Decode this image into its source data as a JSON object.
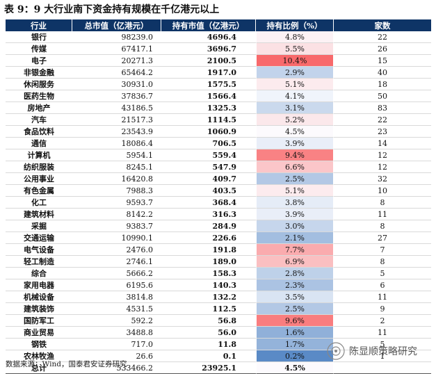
{
  "title": "表 9：9 大行业南下资金持有规模在千亿港元以上",
  "headers": [
    "行业",
    "总市值（亿港元）",
    "持有市值（亿港元）",
    "持有比例（%）",
    "家数"
  ],
  "rows": [
    {
      "industry": "银行",
      "market_value": "98239.0",
      "holding_value": "4696.4",
      "ratio": "4.8%",
      "ratio_num": 4.8,
      "count": "22"
    },
    {
      "industry": "传媒",
      "market_value": "67417.1",
      "holding_value": "3696.7",
      "ratio": "5.5%",
      "ratio_num": 5.5,
      "count": "26"
    },
    {
      "industry": "电子",
      "market_value": "20271.3",
      "holding_value": "2100.5",
      "ratio": "10.4%",
      "ratio_num": 10.4,
      "count": "15"
    },
    {
      "industry": "非银金融",
      "market_value": "65464.2",
      "holding_value": "1917.0",
      "ratio": "2.9%",
      "ratio_num": 2.9,
      "count": "40"
    },
    {
      "industry": "休闲服务",
      "market_value": "30931.0",
      "holding_value": "1575.5",
      "ratio": "5.1%",
      "ratio_num": 5.1,
      "count": "18"
    },
    {
      "industry": "医药生物",
      "market_value": "37836.7",
      "holding_value": "1566.4",
      "ratio": "4.1%",
      "ratio_num": 4.1,
      "count": "50"
    },
    {
      "industry": "房地产",
      "market_value": "43186.5",
      "holding_value": "1325.3",
      "ratio": "3.1%",
      "ratio_num": 3.1,
      "count": "83"
    },
    {
      "industry": "汽车",
      "market_value": "21517.3",
      "holding_value": "1114.5",
      "ratio": "5.2%",
      "ratio_num": 5.2,
      "count": "22"
    },
    {
      "industry": "食品饮料",
      "market_value": "23543.9",
      "holding_value": "1060.9",
      "ratio": "4.5%",
      "ratio_num": 4.5,
      "count": "23"
    },
    {
      "industry": "通信",
      "market_value": "18086.4",
      "holding_value": "706.5",
      "ratio": "3.9%",
      "ratio_num": 3.9,
      "count": "14"
    },
    {
      "industry": "计算机",
      "market_value": "5954.1",
      "holding_value": "559.4",
      "ratio": "9.4%",
      "ratio_num": 9.4,
      "count": "12"
    },
    {
      "industry": "纺织服装",
      "market_value": "8245.1",
      "holding_value": "547.9",
      "ratio": "6.6%",
      "ratio_num": 6.6,
      "count": "12"
    },
    {
      "industry": "公用事业",
      "market_value": "16420.8",
      "holding_value": "409.7",
      "ratio": "2.5%",
      "ratio_num": 2.5,
      "count": "32"
    },
    {
      "industry": "有色金属",
      "market_value": "7988.3",
      "holding_value": "403.5",
      "ratio": "5.1%",
      "ratio_num": 5.1,
      "count": "10"
    },
    {
      "industry": "化工",
      "market_value": "9593.7",
      "holding_value": "368.4",
      "ratio": "3.8%",
      "ratio_num": 3.8,
      "count": "8"
    },
    {
      "industry": "建筑材料",
      "market_value": "8142.2",
      "holding_value": "316.3",
      "ratio": "3.9%",
      "ratio_num": 3.9,
      "count": "11"
    },
    {
      "industry": "采掘",
      "market_value": "9383.7",
      "holding_value": "284.9",
      "ratio": "3.0%",
      "ratio_num": 3.0,
      "count": "8"
    },
    {
      "industry": "交通运输",
      "market_value": "10990.1",
      "holding_value": "226.6",
      "ratio": "2.1%",
      "ratio_num": 2.1,
      "count": "27"
    },
    {
      "industry": "电气设备",
      "market_value": "2476.0",
      "holding_value": "191.8",
      "ratio": "7.7%",
      "ratio_num": 7.7,
      "count": "7"
    },
    {
      "industry": "轻工制造",
      "market_value": "2746.1",
      "holding_value": "189.0",
      "ratio": "6.9%",
      "ratio_num": 6.9,
      "count": "8"
    },
    {
      "industry": "综合",
      "market_value": "5666.2",
      "holding_value": "158.3",
      "ratio": "2.8%",
      "ratio_num": 2.8,
      "count": "5"
    },
    {
      "industry": "家用电器",
      "market_value": "6195.6",
      "holding_value": "140.3",
      "ratio": "2.3%",
      "ratio_num": 2.3,
      "count": "6"
    },
    {
      "industry": "机械设备",
      "market_value": "3814.8",
      "holding_value": "132.2",
      "ratio": "3.5%",
      "ratio_num": 3.5,
      "count": "11"
    },
    {
      "industry": "建筑装饰",
      "market_value": "4531.5",
      "holding_value": "112.5",
      "ratio": "2.5%",
      "ratio_num": 2.5,
      "count": "9"
    },
    {
      "industry": "国防军工",
      "market_value": "592.2",
      "holding_value": "56.8",
      "ratio": "9.6%",
      "ratio_num": 9.6,
      "count": "2"
    },
    {
      "industry": "商业贸易",
      "market_value": "3488.8",
      "holding_value": "56.0",
      "ratio": "1.6%",
      "ratio_num": 1.6,
      "count": "11"
    },
    {
      "industry": "钢铁",
      "market_value": "717.0",
      "holding_value": "11.8",
      "ratio": "1.7%",
      "ratio_num": 1.7,
      "count": "5"
    },
    {
      "industry": "农林牧渔",
      "market_value": "26.6",
      "holding_value": "0.1",
      "ratio": "0.2%",
      "ratio_num": 0.2,
      "count": "1"
    },
    {
      "industry": "总计",
      "market_value": "533466.2",
      "holding_value": "23925.1",
      "ratio": "4.5%",
      "ratio_num": 4.5,
      "count": ""
    }
  ],
  "source": "数据来源：Wind，国泰君安证券研究",
  "watermark": "陈显顺策略研究",
  "colors": {
    "header_bg": "#0e3466",
    "heat_high": "#f8696b",
    "heat_mid": "#fcfcff",
    "heat_low": "#5a8ac6"
  }
}
